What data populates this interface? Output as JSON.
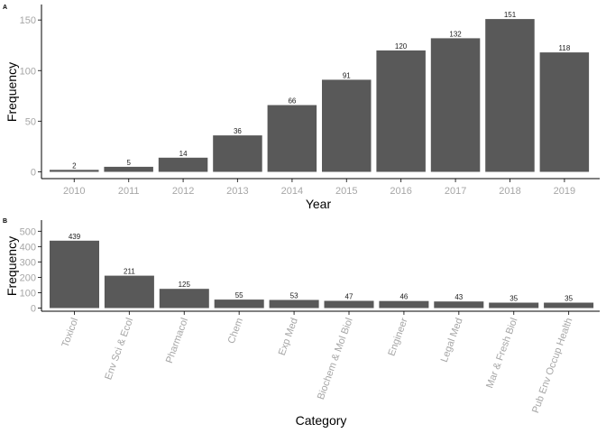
{
  "chart_data": [
    {
      "panel": "A",
      "type": "bar",
      "categories": [
        "2010",
        "2011",
        "2012",
        "2013",
        "2014",
        "2015",
        "2016",
        "2017",
        "2018",
        "2019"
      ],
      "values": [
        2,
        5,
        14,
        36,
        66,
        91,
        120,
        132,
        151,
        118
      ],
      "xlabel": "Year",
      "ylabel": "Frequency",
      "ylim": [
        0,
        160
      ],
      "yticks": [
        0,
        50,
        100,
        150
      ],
      "grid": false,
      "legend": "none",
      "bar_color": "#595959",
      "tick_label_color": "#a6a6a6"
    },
    {
      "panel": "B",
      "type": "bar",
      "categories": [
        "Toxicol",
        "Env Sci & Ecol",
        "Pharmacol",
        "Chem",
        "Exp Med",
        "Biochem & Mol Biol",
        "Engineer",
        "Legal Med",
        "Mar & Fresh Biol",
        "Pub Env Occup Health"
      ],
      "values": [
        439,
        211,
        125,
        55,
        53,
        47,
        46,
        43,
        35,
        35
      ],
      "xlabel": "Category",
      "ylabel": "Frequency",
      "ylim": [
        0,
        520
      ],
      "yticks": [
        0,
        100,
        200,
        300,
        400,
        500
      ],
      "x_tick_rotation": -70,
      "grid": false,
      "legend": "none",
      "bar_color": "#595959",
      "tick_label_color": "#a6a6a6"
    }
  ]
}
